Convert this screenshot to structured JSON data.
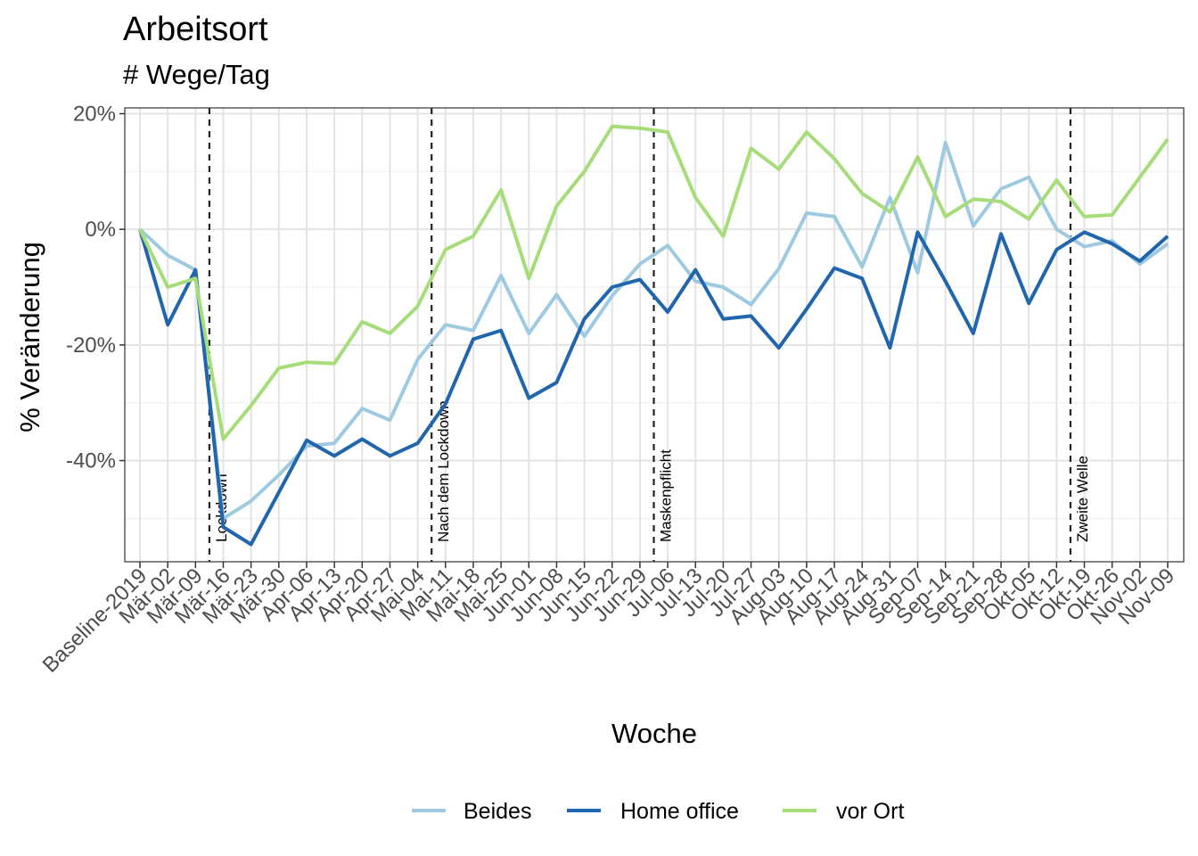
{
  "chart_data": {
    "type": "line",
    "title": "Arbeitsort",
    "subtitle": "# Wege/Tag",
    "xlabel": "Woche",
    "ylabel": "% Veränderung",
    "ylim": [
      -57.5,
      21
    ],
    "yticks": [
      20,
      0,
      -20,
      -40
    ],
    "ytick_labels": [
      "20%",
      "0%",
      "-20%",
      "-40%"
    ],
    "grid": true,
    "legend_position": "bottom",
    "categories": [
      "Baseline-2019",
      "Mär-02",
      "Mär-09",
      "Mär-16",
      "Mär-23",
      "Mär-30",
      "Apr-06",
      "Apr-13",
      "Apr-20",
      "Apr-27",
      "Mai-04",
      "Mai-11",
      "Mai-18",
      "Mai-25",
      "Jun-01",
      "Jun-08",
      "Jun-15",
      "Jun-22",
      "Jun-29",
      "Jul-06",
      "Jul-13",
      "Jul-20",
      "Jul-27",
      "Aug-03",
      "Aug-10",
      "Aug-17",
      "Aug-24",
      "Aug-31",
      "Sep-07",
      "Sep-14",
      "Sep-21",
      "Sep-28",
      "Okt-05",
      "Okt-12",
      "Okt-19",
      "Okt-26",
      "Nov-02",
      "Nov-09"
    ],
    "series": [
      {
        "name": "Beides",
        "color": "#9ecae1",
        "values": [
          0,
          -4.5,
          -7,
          -50,
          -47,
          -42.5,
          -37.5,
          -37,
          -31,
          -33,
          -22.5,
          -16.5,
          -17.5,
          -8,
          -18,
          -11.3,
          -18.5,
          -11.5,
          -6,
          -2.8,
          -9,
          -10,
          -13,
          -6.8,
          2.8,
          2.2,
          -6.5,
          5.5,
          -7.5,
          15,
          0.6,
          7,
          9,
          0,
          -3,
          -2,
          -6,
          -2.5
        ]
      },
      {
        "name": "Home office",
        "color": "#2166ac",
        "values": [
          0,
          -16.5,
          -7,
          -51.5,
          -54.5,
          -45.5,
          -36.5,
          -39.2,
          -36.3,
          -39.2,
          -37,
          -30.2,
          -19,
          -17.5,
          -29.2,
          -26.5,
          -15.5,
          -10,
          -8.7,
          -14.3,
          -7,
          -15.5,
          -15,
          -20.5,
          -13.8,
          -6.7,
          -8.5,
          -20.5,
          -0.5,
          -9,
          -18,
          -0.8,
          -12.8,
          -3.5,
          -0.5,
          -2.5,
          -5.5,
          -1.2
        ]
      },
      {
        "name": "vor Ort",
        "color": "#a6dc7a",
        "values": [
          0,
          -10,
          -8.5,
          -36.3,
          -30.5,
          -24,
          -23,
          -23.2,
          -16,
          -18,
          -13.3,
          -3.5,
          -1.2,
          6.8,
          -8.5,
          4,
          10,
          17.8,
          17.5,
          16.8,
          5.5,
          -1.2,
          14,
          10.4,
          16.8,
          12.2,
          6.2,
          3,
          12.5,
          2.2,
          5.2,
          4.8,
          1.8,
          8.5,
          2.2,
          2.5,
          9,
          15.6
        ]
      }
    ],
    "vertical_lines": [
      {
        "label": "Lockdown",
        "after_category": "Mär-09"
      },
      {
        "label": "Nach dem Lockdown",
        "after_category": "Mai-04"
      },
      {
        "label": "Maskenpflicht",
        "after_category": "Jun-29"
      },
      {
        "label": "Zweite Welle",
        "after_category": "Okt-12"
      }
    ]
  }
}
